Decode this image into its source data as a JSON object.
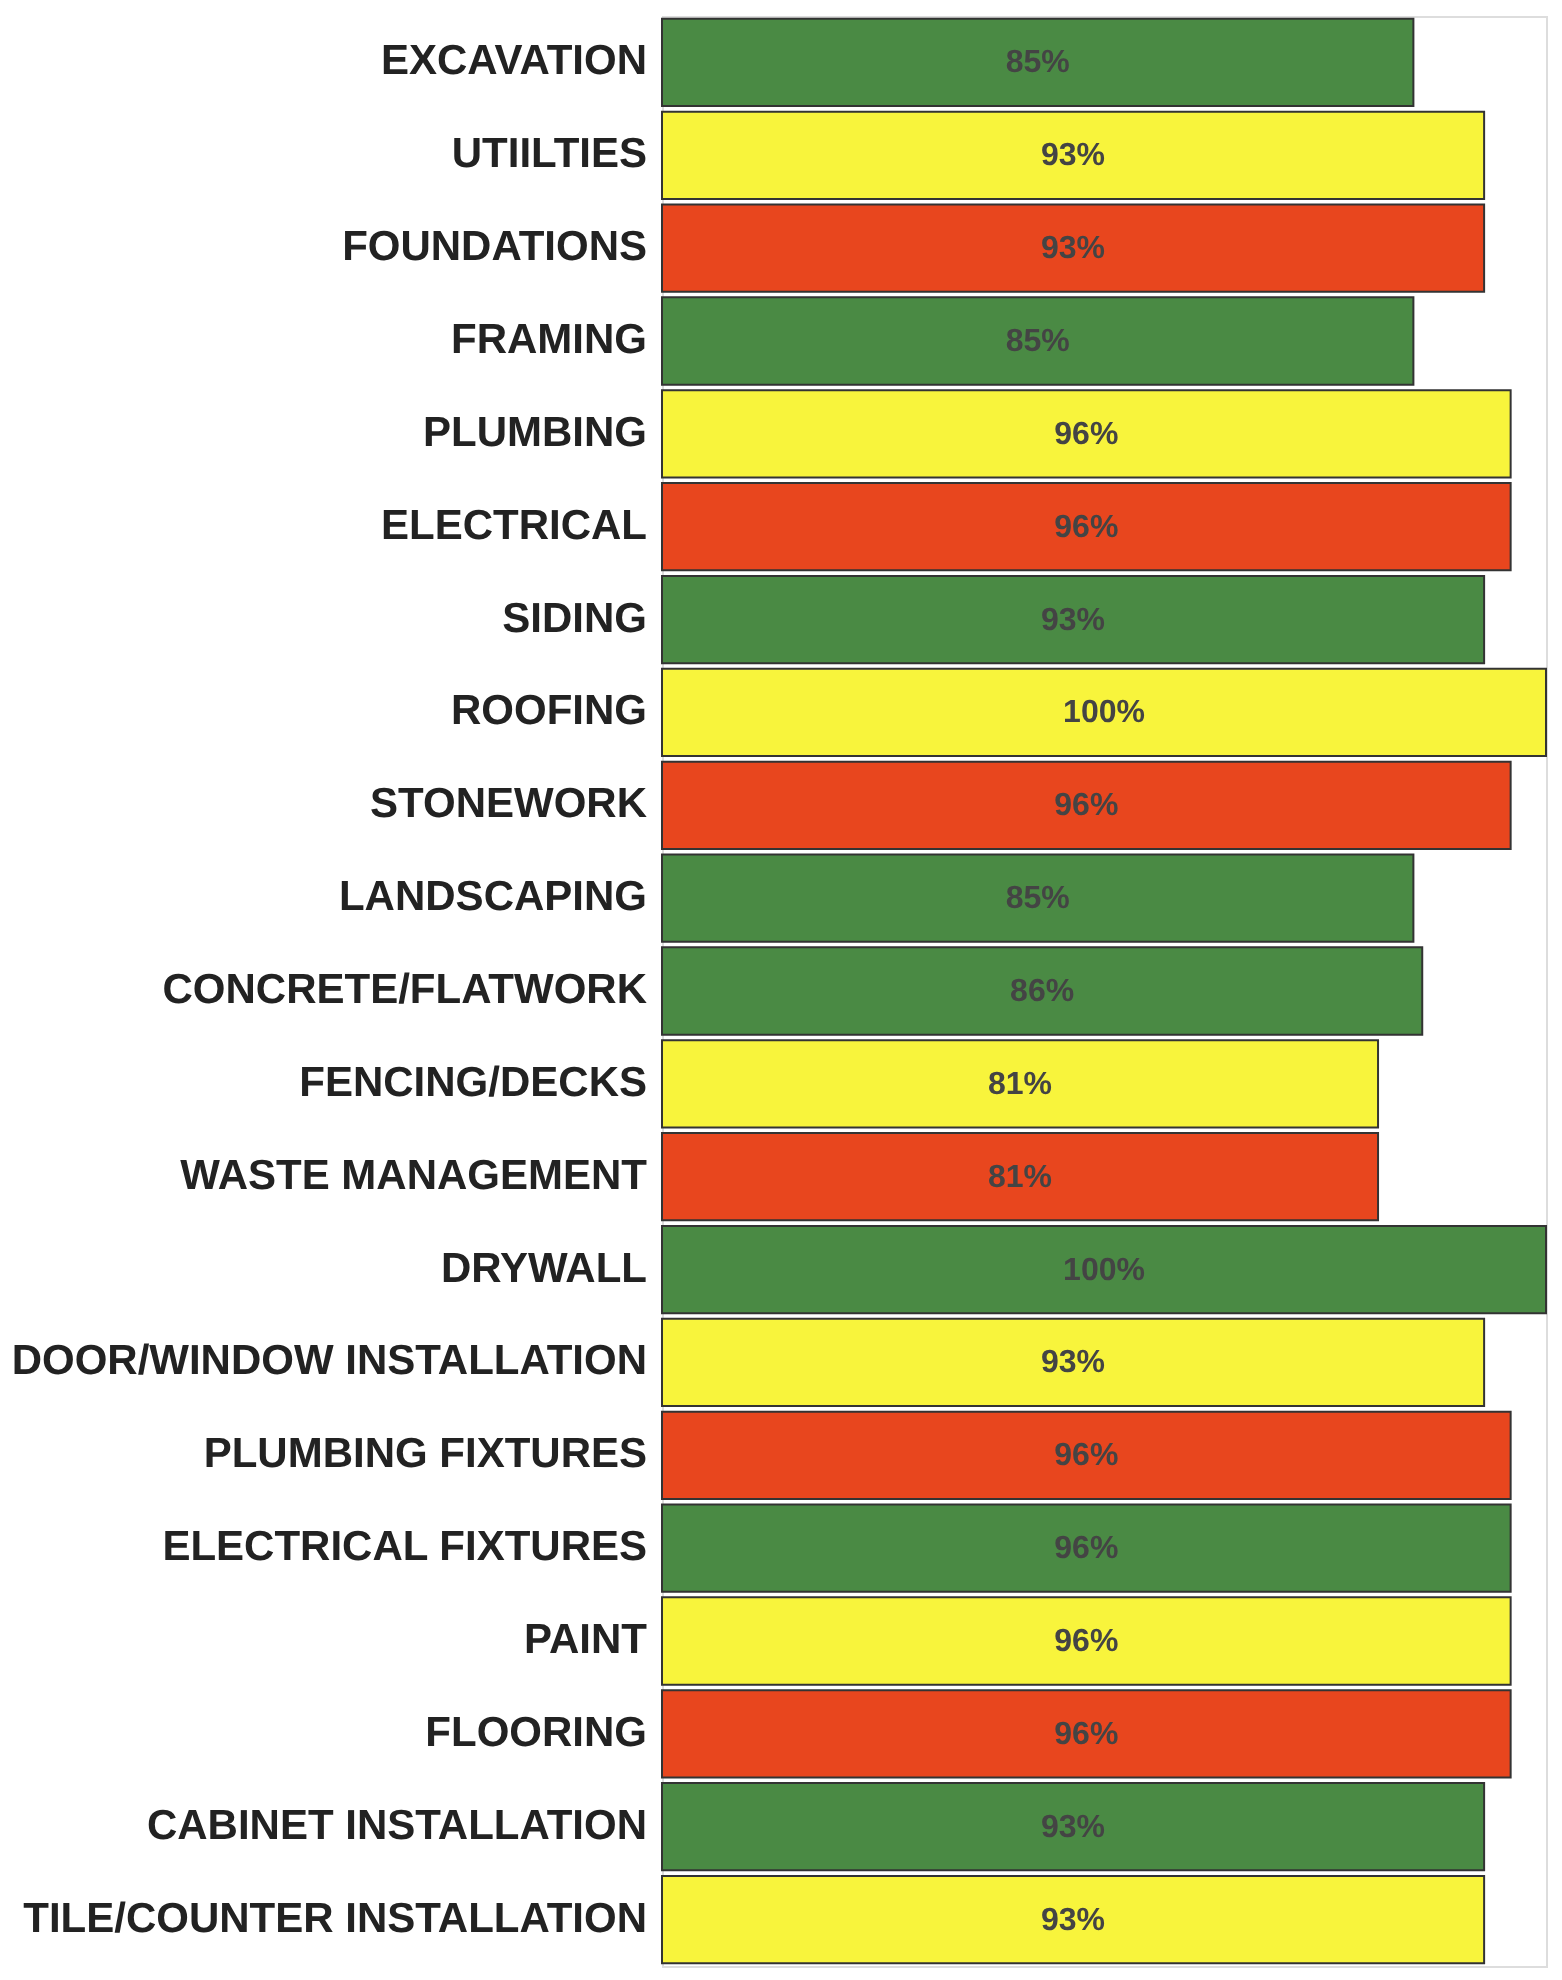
{
  "chart_data": {
    "type": "bar",
    "orientation": "horizontal",
    "categories": [
      "EXCAVATION",
      "UTIILTIES",
      "FOUNDATIONS",
      "FRAMING",
      "PLUMBING",
      "ELECTRICAL",
      "SIDING",
      "ROOFING",
      "STONEWORK",
      "LANDSCAPING",
      "CONCRETE/FLATWORK",
      "FENCING/DECKS",
      "WASTE MANAGEMENT",
      "DRYWALL",
      "DOOR/WINDOW INSTALLATION",
      "PLUMBING FIXTURES",
      "ELECTRICAL FIXTURES",
      "PAINT",
      "FLOORING",
      "CABINET INSTALLATION",
      "TILE/COUNTER INSTALLATION"
    ],
    "values": [
      85,
      93,
      93,
      85,
      96,
      96,
      93,
      100,
      96,
      85,
      86,
      81,
      81,
      100,
      93,
      96,
      96,
      96,
      96,
      93,
      93
    ],
    "value_labels": [
      "85%",
      "93%",
      "93%",
      "85%",
      "96%",
      "96%",
      "93%",
      "100%",
      "96%",
      "85%",
      "86%",
      "81%",
      "81%",
      "100%",
      "93%",
      "96%",
      "96%",
      "96%",
      "96%",
      "93%",
      "93%"
    ],
    "colors": [
      "#4a8a44",
      "#f8f43c",
      "#e8461e",
      "#4a8a44",
      "#f8f43c",
      "#e8461e",
      "#4a8a44",
      "#f8f43c",
      "#e8461e",
      "#4a8a44",
      "#4a8a44",
      "#f8f43c",
      "#e8461e",
      "#4a8a44",
      "#f8f43c",
      "#e8461e",
      "#4a8a44",
      "#f8f43c",
      "#e8461e",
      "#4a8a44",
      "#f8f43c"
    ]
  }
}
